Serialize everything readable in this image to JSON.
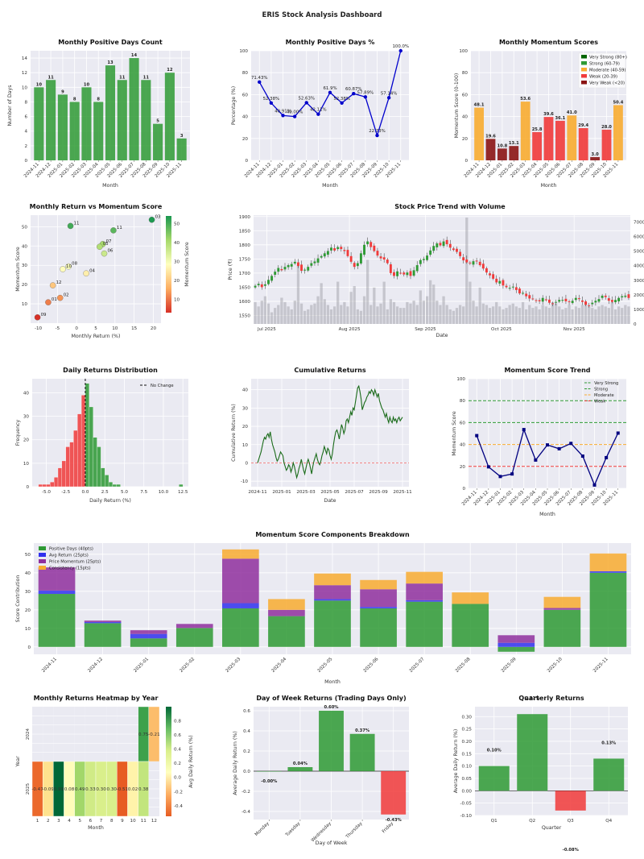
{
  "suptitle": "ERIS Stock Analysis Dashboard",
  "colors": {
    "green": "#2e9a34",
    "red": "#f13a3a",
    "orange": "#f8ac30",
    "darkred": "#8b1414",
    "blue": "#0000cc",
    "navy": "#000080",
    "purple": "#8f2f9e",
    "plot_bg": "#eaeaf2",
    "grid": "#ffffff"
  },
  "chart_data": [
    {
      "id": "positive_days_count",
      "type": "bar",
      "title": "Monthly Positive Days Count",
      "xlabel": "Month",
      "ylabel": "Number of Days",
      "categories": [
        "2024-11",
        "2024-12",
        "2025-01",
        "2025-02",
        "2025-03",
        "2025-04",
        "2025-05",
        "2025-06",
        "2025-07",
        "2025-08",
        "2025-09",
        "2025-10",
        "2025-11"
      ],
      "values": [
        10,
        11,
        9,
        8,
        10,
        8,
        13,
        11,
        14,
        11,
        5,
        12,
        3
      ],
      "ylim": [
        0,
        15
      ],
      "yticks": [
        0,
        2,
        4,
        6,
        8,
        10,
        12,
        14
      ]
    },
    {
      "id": "positive_days_pct",
      "type": "line",
      "title": "Monthly Positive Days %",
      "xlabel": "Month",
      "ylabel": "Percentage (%)",
      "categories": [
        "2024-11",
        "2024-12",
        "2025-01",
        "2025-02",
        "2025-03",
        "2025-04",
        "2025-05",
        "2025-06",
        "2025-07",
        "2025-08",
        "2025-09",
        "2025-10",
        "2025-11"
      ],
      "values": [
        71.43,
        52.38,
        40.91,
        40.0,
        52.63,
        42.11,
        61.9,
        52.38,
        60.87,
        57.89,
        22.73,
        57.14,
        100.0
      ],
      "labels": [
        "71.43%",
        "52.38%",
        "40.91%",
        "40.00%",
        "52.63%",
        "42.11%",
        "61.9%",
        "52.38%",
        "60.87%",
        "57.89%",
        "22.73%",
        "57.14%",
        "100.0%"
      ],
      "ylim": [
        0,
        100
      ],
      "yticks": [
        0,
        20,
        40,
        60,
        80,
        100
      ]
    },
    {
      "id": "momentum_scores",
      "type": "bar",
      "title": "Monthly Momentum Scores",
      "xlabel": "Month",
      "ylabel": "Momentum Score (0-100)",
      "categories": [
        "2024-11",
        "2024-12",
        "2025-01",
        "2025-02",
        "2025-03",
        "2025-04",
        "2025-05",
        "2025-06",
        "2025-07",
        "2025-08",
        "2025-09",
        "2025-10",
        "2025-11"
      ],
      "values": [
        48.1,
        19.6,
        10.8,
        13.1,
        53.6,
        25.8,
        39.6,
        36.1,
        41.0,
        29.4,
        3.0,
        28.0,
        50.4
      ],
      "labels": [
        "48.1",
        "19.6",
        "10.8",
        "13.1",
        "53.6",
        "25.8",
        "39.6",
        "36.1",
        "41.0",
        "29.4",
        "3.0",
        "28.0",
        "50.4"
      ],
      "ylim": [
        0,
        100
      ],
      "yticks": [
        0,
        20,
        40,
        60,
        80,
        100
      ],
      "legend": [
        {
          "label": "Very Strong (80+)",
          "color": "#006400"
        },
        {
          "label": "Strong (60-79)",
          "color": "#2e9a34"
        },
        {
          "label": "Moderate (40-59)",
          "color": "#f8ac30"
        },
        {
          "label": "Weak (20-39)",
          "color": "#f13a3a"
        },
        {
          "label": "Very Weak (<20)",
          "color": "#8b1414"
        }
      ]
    },
    {
      "id": "return_vs_momentum",
      "type": "scatter",
      "title": "Monthly Return vs Momentum Score",
      "xlabel": "Monthly Return (%)",
      "ylabel": "Momentum Score",
      "colorbar_label": "Momentum Score",
      "colorbar_ticks": [
        10,
        20,
        30,
        40,
        50
      ],
      "points": [
        {
          "label": "11",
          "x": -1.6,
          "y": 50.4
        },
        {
          "label": "11",
          "x": 9.6,
          "y": 48.1
        },
        {
          "label": "03",
          "x": 19.6,
          "y": 53.6
        },
        {
          "label": "07",
          "x": 6.8,
          "y": 41.0
        },
        {
          "label": "05",
          "x": 6.0,
          "y": 39.6
        },
        {
          "label": "06",
          "x": 7.2,
          "y": 36.1
        },
        {
          "label": "08",
          "x": -2.1,
          "y": 29.4
        },
        {
          "label": "10",
          "x": -3.6,
          "y": 28.0
        },
        {
          "label": "04",
          "x": 2.5,
          "y": 25.8
        },
        {
          "label": "12",
          "x": -6.2,
          "y": 19.6
        },
        {
          "label": "02",
          "x": -4.3,
          "y": 13.1
        },
        {
          "label": "01",
          "x": -7.4,
          "y": 10.8
        },
        {
          "label": "09",
          "x": -10.2,
          "y": 3.0
        }
      ],
      "xlim": [
        -12,
        22
      ],
      "xticks": [
        -10,
        -5,
        0,
        5,
        10,
        15,
        20
      ],
      "ylim": [
        0,
        56
      ],
      "yticks": [
        10,
        20,
        30,
        40,
        50
      ]
    },
    {
      "id": "price_volume",
      "type": "candlestick",
      "title": "Stock Price Trend with Volume",
      "xlabel": "Date",
      "ylabel": "Price (₹)",
      "xticks": [
        "Jul 2025",
        "Aug 2025",
        "Sep 2025",
        "Oct 2025",
        "Nov 2025"
      ],
      "yticks": [
        1550,
        1600,
        1650,
        1700,
        1750,
        1800,
        1850,
        1900
      ],
      "ylim": [
        1520,
        1905
      ],
      "volume_ticks": [
        0,
        1000,
        2000,
        3000,
        4000,
        5000,
        6000,
        7000
      ],
      "closes": [
        1655,
        1662,
        1650,
        1660,
        1676,
        1690,
        1705,
        1718,
        1710,
        1722,
        1728,
        1732,
        1740,
        1725,
        1708,
        1712,
        1722,
        1735,
        1741,
        1752,
        1760,
        1770,
        1778,
        1790,
        1780,
        1792,
        1785,
        1778,
        1760,
        1740,
        1722,
        1735,
        1770,
        1800,
        1812,
        1792,
        1778,
        1762,
        1752,
        1748,
        1735,
        1700,
        1690,
        1706,
        1700,
        1695,
        1702,
        1690,
        1710,
        1728,
        1746,
        1750,
        1762,
        1780,
        1796,
        1805,
        1798,
        1812,
        1802,
        1790,
        1782,
        1775,
        1760,
        1745,
        1738,
        1735,
        1742,
        1742,
        1728,
        1716,
        1702,
        1692,
        1680,
        1667,
        1672,
        1656,
        1650,
        1648,
        1652,
        1640,
        1628,
        1630,
        1618,
        1610,
        1608,
        1601,
        1600,
        1612,
        1604,
        1595,
        1592,
        1598,
        1605,
        1605,
        1600,
        1598,
        1602,
        1612,
        1608,
        1598,
        1588,
        1585,
        1595,
        1602,
        1608,
        1620,
        1615,
        1602,
        1598,
        1605,
        1612,
        1618,
        1620,
        1612
      ],
      "volumes": [
        1500,
        1200,
        1600,
        1900,
        1400,
        800,
        1100,
        1300,
        1800,
        1500,
        1200,
        1000,
        1600,
        4100,
        1400,
        900,
        1000,
        1300,
        1400,
        1900,
        2800,
        1700,
        1300,
        1000,
        1200,
        2900,
        1300,
        1500,
        1200,
        2200,
        2600,
        1000,
        900,
        1900,
        4400,
        1300,
        2500,
        1200,
        1400,
        2900,
        1000,
        1700,
        1500,
        1200,
        1100,
        1100,
        1500,
        1400,
        1600,
        1300,
        2300,
        1600,
        1900,
        3000,
        2700,
        1600,
        1300,
        1900,
        1300,
        1000,
        900,
        1100,
        1300,
        1200,
        7300,
        2900,
        1600,
        1200,
        2500,
        1400,
        1300,
        1100,
        1200,
        1500,
        1200,
        1000,
        1100,
        1300,
        1400,
        1200,
        1100,
        1500,
        1000,
        1300,
        1100,
        1200,
        1000,
        1300,
        1200,
        1100,
        1500,
        1400,
        1200,
        1000,
        1100,
        1300,
        1000,
        1200,
        1100,
        1300,
        1400,
        1200,
        1100,
        1000,
        1200,
        1300,
        1200,
        1100,
        1500,
        1000,
        1200,
        1100,
        1300,
        1200
      ]
    },
    {
      "id": "daily_returns_dist",
      "type": "histogram",
      "title": "Daily Returns Distribution",
      "xlabel": "Daily Return (%)",
      "ylabel": "Frequency",
      "legend": "No Change",
      "bins_start": -6.0,
      "bin_width": 0.5,
      "counts": [
        1,
        1,
        1,
        2,
        4,
        8,
        11,
        17,
        19,
        24,
        31,
        39,
        44,
        34,
        21,
        17,
        8,
        5,
        2,
        1,
        1,
        0,
        0,
        0,
        0,
        0,
        0,
        0,
        0,
        0,
        0,
        0,
        0,
        0,
        0,
        0,
        1
      ],
      "xlim": [
        -6.8,
        13.2
      ],
      "xticks": [
        -5.0,
        -2.5,
        0.0,
        2.5,
        5.0,
        7.5,
        10.0,
        12.5
      ],
      "ylim": [
        0,
        46
      ],
      "yticks": [
        0,
        10,
        20,
        30,
        40
      ]
    },
    {
      "id": "cumulative_returns",
      "type": "line",
      "title": "Cumulative Returns",
      "xlabel": "Date",
      "ylabel": "Cumulative Return (%)",
      "xticks": [
        "2024-11",
        "2025-01",
        "2025-03",
        "2025-05",
        "2025-07",
        "2025-09",
        "2025-11"
      ],
      "yticks": [
        -10,
        0,
        10,
        20,
        30,
        40
      ],
      "ylim": [
        -13,
        46
      ],
      "values": [
        0,
        2,
        4,
        6,
        9,
        12,
        14,
        13,
        15,
        16,
        14,
        17,
        13,
        10,
        8,
        6,
        3,
        1,
        2,
        4,
        6,
        5,
        4,
        0,
        -2,
        -4,
        -3,
        -1,
        -2,
        -5,
        -3,
        0,
        -2,
        -5,
        -8,
        -6,
        -3,
        -1,
        2,
        -1,
        -4,
        -6,
        -3,
        0,
        2,
        0,
        -3,
        -6,
        -2,
        1,
        3,
        5,
        2,
        0,
        -1,
        1,
        4,
        6,
        9,
        7,
        5,
        8,
        7,
        4,
        2,
        5,
        10,
        14,
        17,
        18,
        16,
        13,
        17,
        21,
        19,
        16,
        18,
        23,
        24,
        22,
        25,
        28,
        26,
        30,
        29,
        33,
        37,
        41,
        42,
        39,
        35,
        29,
        31,
        33,
        34,
        36,
        37,
        39,
        38,
        40,
        39,
        37,
        40,
        38,
        36,
        38,
        34,
        32,
        30,
        29,
        27,
        25,
        27,
        24,
        22,
        25,
        23,
        22,
        25,
        23,
        24,
        22,
        24,
        25,
        23,
        24,
        25
      ]
    },
    {
      "id": "momentum_trend",
      "type": "line",
      "title": "Momentum Score Trend",
      "xlabel": "Month",
      "ylabel": "Momentum Score",
      "categories": [
        "2024-11",
        "2024-12",
        "2025-01",
        "2025-02",
        "2025-03",
        "2025-04",
        "2025-05",
        "2025-06",
        "2025-07",
        "2025-08",
        "2025-09",
        "2025-10",
        "2025-11"
      ],
      "values": [
        48.1,
        19.6,
        10.8,
        13.1,
        53.6,
        25.8,
        39.6,
        36.1,
        41.0,
        29.4,
        3.0,
        28.0,
        50.4
      ],
      "ylim": [
        0,
        100
      ],
      "yticks": [
        0,
        20,
        40,
        60,
        80,
        100
      ],
      "reference_lines": [
        {
          "label": "Very Strong",
          "value": 80,
          "color": "#2e9a34"
        },
        {
          "label": "Strong",
          "value": 60,
          "color": "#2e9a34"
        },
        {
          "label": "Moderate",
          "value": 40,
          "color": "#f8ac30"
        },
        {
          "label": "Weak",
          "value": 20,
          "color": "#f13a3a"
        }
      ]
    },
    {
      "id": "score_components",
      "type": "stacked_bar",
      "title": "Momentum Score Components Breakdown",
      "xlabel": "Month",
      "ylabel": "Score Contribution",
      "categories": [
        "2024-11",
        "2024-12",
        "2025-01",
        "2025-02",
        "2025-03",
        "2025-04",
        "2025-05",
        "2025-06",
        "2025-07",
        "2025-08",
        "2025-09",
        "2025-10",
        "2025-11"
      ],
      "series": [
        {
          "name": "Positive Days (40pts)",
          "color": "#2e9a34",
          "values": [
            28.6,
            12.8,
            4.6,
            10.2,
            20.8,
            16.6,
            25.0,
            20.8,
            24.4,
            23.2,
            -2.6,
            20.0,
            40.0
          ]
        },
        {
          "name": "Avg Return (25pts)",
          "color": "#3030ee",
          "values": [
            1.8,
            0.6,
            2.4,
            0.0,
            2.8,
            0.0,
            0.8,
            0.8,
            0.8,
            0.0,
            2.2,
            0.0,
            0.8
          ]
        },
        {
          "name": "Price Momentum (25pts)",
          "color": "#8f2f9e",
          "values": [
            12.5,
            0.8,
            2.0,
            2.2,
            24.0,
            3.4,
            7.5,
            9.5,
            9.0,
            0.0,
            4.1,
            1.0,
            0.0
          ]
        },
        {
          "name": "Consistency (15pts)",
          "color": "#f8ac30",
          "values": [
            0.0,
            0.0,
            0.0,
            0.0,
            5.0,
            5.8,
            6.3,
            5.0,
            6.3,
            6.2,
            0.0,
            6.0,
            9.6
          ]
        }
      ],
      "negative_series": [
        {
          "name": "Avg Return (25pts)",
          "color": "#dc7d20",
          "values": [
            0,
            -6.5,
            -6.5,
            -1.8,
            0,
            0,
            0,
            0,
            0,
            0,
            -2.4,
            -3.5,
            0
          ]
        }
      ],
      "ylim": [
        -4,
        56
      ],
      "yticks": [
        0,
        10,
        20,
        30,
        40,
        50
      ]
    },
    {
      "id": "monthly_heatmap",
      "type": "heatmap",
      "title": "Monthly Returns Heatmap by Year",
      "xlabel": "Month",
      "ylabel": "Year",
      "colorbar_label": "Avg Daily Return (%)",
      "colorbar_ticks": [
        -0.4,
        -0.2,
        0.0,
        0.2,
        0.4,
        0.6,
        0.8
      ],
      "columns": [
        "1",
        "2",
        "3",
        "4",
        "5",
        "6",
        "7",
        "8",
        "9",
        "10",
        "11",
        "12"
      ],
      "rows": [
        "2024",
        "2025"
      ],
      "cells": [
        [
          null,
          null,
          null,
          null,
          null,
          null,
          null,
          null,
          null,
          null,
          0.75,
          -0.21
        ],
        [
          -0.47,
          -0.09,
          0.99,
          0.08,
          0.49,
          0.33,
          0.3,
          0.3,
          -0.51,
          0.02,
          0.38,
          null
        ]
      ],
      "labels": [
        [
          "",
          "",
          "",
          "",
          "",
          "",
          "",
          "",
          "",
          "",
          "0.75",
          "-0.21"
        ],
        [
          "-0.47",
          "-0.09",
          "0.99",
          "0.08",
          "0.49",
          "0.33",
          "0.30",
          "0.30",
          "-0.51",
          "0.02",
          "0.38",
          ""
        ]
      ]
    },
    {
      "id": "day_of_week",
      "type": "bar",
      "title": "Day of Week Returns (Trading Days Only)",
      "xlabel": "Day of Week",
      "ylabel": "Average Daily Return (%)",
      "categories": [
        "Monday",
        "Tuesday",
        "Wednesday",
        "Thursday",
        "Friday"
      ],
      "values": [
        -0.0,
        0.04,
        0.6,
        0.37,
        -0.43
      ],
      "labels": [
        "-0.00%",
        "0.04%",
        "0.60%",
        "0.37%",
        "-0.43%"
      ],
      "ylim": [
        -0.48,
        0.64
      ],
      "yticks": [
        -0.4,
        -0.2,
        0.0,
        0.2,
        0.4,
        0.6
      ]
    },
    {
      "id": "quarterly_returns",
      "type": "bar",
      "title": "Quarterly Returns",
      "xlabel": "Quarter",
      "ylabel": "Average Daily Return (%)",
      "categories": [
        "Q1",
        "Q2",
        "Q3",
        "Q4"
      ],
      "values": [
        0.1,
        0.31,
        -0.08,
        0.13
      ],
      "labels": [
        "0.10%",
        "0.31%",
        "-0.08%",
        "0.13%"
      ],
      "ylim": [
        -0.1,
        0.34
      ],
      "yticks": [
        -0.1,
        -0.05,
        0.0,
        0.05,
        0.1,
        0.15,
        0.2,
        0.25,
        0.3
      ]
    }
  ]
}
